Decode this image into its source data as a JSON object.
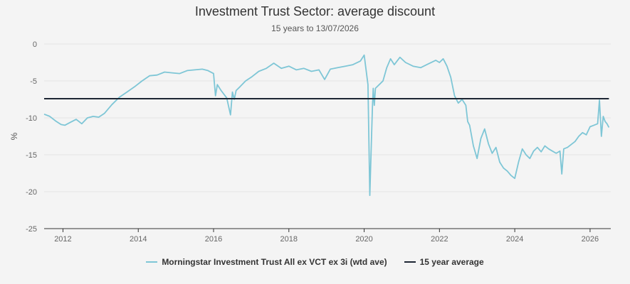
{
  "chart_data": {
    "type": "line",
    "title": "Investment Trust Sector: average discount",
    "subtitle": "15 years to 13/07/2026",
    "xlabel": "",
    "ylabel": "%",
    "xlim": [
      2011.5,
      2026.55
    ],
    "ylim": [
      -25,
      0
    ],
    "x_ticks": [
      "2012",
      "2014",
      "2016",
      "2018",
      "2020",
      "2022",
      "2024",
      "2026"
    ],
    "y_ticks": [
      "0",
      "-5",
      "-10",
      "-15",
      "-20",
      "-25"
    ],
    "grid": true,
    "legend_position": "bottom",
    "series": [
      {
        "name": "Morningstar Investment Trust All ex VCT ex 3i (wtd ave)",
        "color": "#7ec6d6",
        "x": [
          2011.5,
          2011.65,
          2011.8,
          2011.95,
          2012.05,
          2012.2,
          2012.35,
          2012.5,
          2012.65,
          2012.8,
          2012.95,
          2013.1,
          2013.3,
          2013.5,
          2013.7,
          2013.9,
          2014.1,
          2014.3,
          2014.5,
          2014.7,
          2014.9,
          2015.1,
          2015.3,
          2015.5,
          2015.7,
          2015.85,
          2016.0,
          2016.05,
          2016.1,
          2016.2,
          2016.35,
          2016.45,
          2016.5,
          2016.55,
          2016.6,
          2016.7,
          2016.85,
          2017.0,
          2017.2,
          2017.4,
          2017.6,
          2017.8,
          2018.0,
          2018.2,
          2018.4,
          2018.6,
          2018.8,
          2018.95,
          2019.1,
          2019.3,
          2019.5,
          2019.7,
          2019.9,
          2020.0,
          2020.1,
          2020.15,
          2020.2,
          2020.22,
          2020.24,
          2020.27,
          2020.3,
          2020.4,
          2020.5,
          2020.6,
          2020.7,
          2020.8,
          2020.95,
          2021.1,
          2021.3,
          2021.5,
          2021.7,
          2021.9,
          2022.0,
          2022.1,
          2022.2,
          2022.3,
          2022.4,
          2022.5,
          2022.6,
          2022.7,
          2022.75,
          2022.8,
          2022.9,
          2023.0,
          2023.1,
          2023.2,
          2023.3,
          2023.4,
          2023.5,
          2023.6,
          2023.7,
          2023.8,
          2023.9,
          2024.0,
          2024.1,
          2024.2,
          2024.3,
          2024.4,
          2024.5,
          2024.6,
          2024.7,
          2024.8,
          2024.9,
          2025.0,
          2025.1,
          2025.2,
          2025.25,
          2025.3,
          2025.4,
          2025.5,
          2025.6,
          2025.7,
          2025.8,
          2025.9,
          2026.0,
          2026.1,
          2026.2,
          2026.25,
          2026.3,
          2026.35,
          2026.4,
          2026.45,
          2026.5
        ],
        "y": [
          -9.5,
          -9.8,
          -10.4,
          -10.9,
          -11.0,
          -10.6,
          -10.2,
          -10.8,
          -10.0,
          -9.8,
          -9.9,
          -9.4,
          -8.2,
          -7.2,
          -6.5,
          -5.8,
          -5.0,
          -4.3,
          -4.2,
          -3.8,
          -3.9,
          -4.0,
          -3.6,
          -3.5,
          -3.4,
          -3.6,
          -4.0,
          -7.0,
          -5.5,
          -6.3,
          -7.3,
          -9.6,
          -6.5,
          -7.5,
          -6.3,
          -5.8,
          -5.0,
          -4.5,
          -3.7,
          -3.3,
          -2.6,
          -3.3,
          -3.0,
          -3.5,
          -3.3,
          -3.7,
          -3.5,
          -4.8,
          -3.4,
          -3.2,
          -3.0,
          -2.8,
          -2.3,
          -1.5,
          -5.5,
          -20.5,
          -12.0,
          -8.5,
          -6.0,
          -8.3,
          -6.0,
          -5.5,
          -5.0,
          -3.2,
          -2.0,
          -2.8,
          -1.8,
          -2.5,
          -3.0,
          -3.2,
          -2.7,
          -2.2,
          -2.5,
          -2.0,
          -3.0,
          -4.5,
          -7.0,
          -8.0,
          -7.5,
          -8.3,
          -10.5,
          -11.0,
          -13.8,
          -15.5,
          -12.8,
          -11.5,
          -13.5,
          -14.8,
          -14.0,
          -16.0,
          -16.8,
          -17.2,
          -17.8,
          -18.2,
          -16.0,
          -14.2,
          -15.0,
          -15.5,
          -14.5,
          -14.0,
          -14.6,
          -13.8,
          -14.2,
          -14.5,
          -14.8,
          -14.5,
          -17.6,
          -14.2,
          -14.0,
          -13.6,
          -13.2,
          -12.5,
          -12.0,
          -12.3,
          -11.2,
          -11.0,
          -10.8,
          -7.6,
          -12.5,
          -9.8,
          -10.5,
          -10.8,
          -11.3
        ]
      },
      {
        "name": "15 year average",
        "color": "#1d2633",
        "x": [
          2011.5,
          2026.5
        ],
        "y": [
          -7.4,
          -7.4
        ]
      }
    ]
  }
}
